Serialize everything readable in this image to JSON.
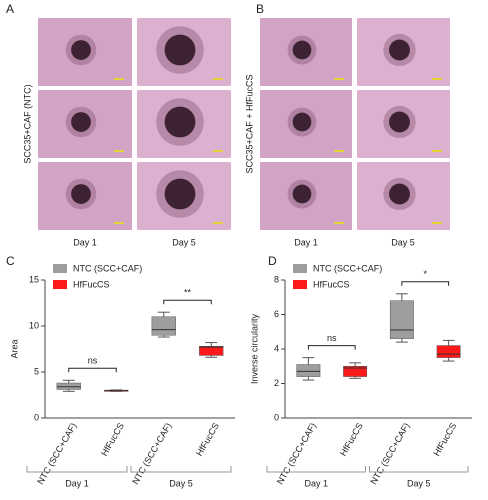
{
  "images": {
    "panel_a": {
      "label": "A",
      "row_label": "SCC35+CAF (NTC)",
      "columns": [
        "Day 1",
        "Day 5"
      ]
    },
    "panel_b": {
      "label": "B",
      "row_label": "SCC35+CAF + HfFucCS",
      "columns": [
        "Day 1",
        "Day 5"
      ]
    }
  },
  "chart_data": [
    {
      "type": "box",
      "panel": "C",
      "ylabel": "Area",
      "categories": [
        "NTC (SCC+CAF)",
        "HfFucCS",
        "NTC (SCC+CAF)",
        "HfFucCS"
      ],
      "groups": [
        "Day 1",
        "Day 5"
      ],
      "annotations": [
        "ns",
        "**"
      ],
      "series": [
        {
          "name": "NTC (SCC+CAF)",
          "color": "#9e9e9e",
          "boxes": [
            {
              "min": 2.9,
              "q1": 3.1,
              "median": 3.4,
              "q3": 3.8,
              "max": 4.1
            },
            null,
            {
              "min": 8.8,
              "q1": 9.0,
              "median": 9.6,
              "q3": 11.0,
              "max": 11.5
            },
            null
          ]
        },
        {
          "name": "HfFucCS",
          "color": "#ff1a1a",
          "boxes": [
            null,
            {
              "min": 2.9,
              "q1": 2.95,
              "median": 3.0,
              "q3": 3.0,
              "max": 3.05
            },
            null,
            {
              "min": 6.6,
              "q1": 6.8,
              "median": 7.7,
              "q3": 7.8,
              "max": 8.2
            }
          ]
        }
      ],
      "ylim": [
        0,
        15
      ],
      "yticks": [
        0,
        5,
        10,
        15
      ]
    },
    {
      "type": "box",
      "panel": "D",
      "ylabel": "Inverse circularity",
      "categories": [
        "NTC (SCC+CAF)",
        "HfFucCS",
        "NTC (SCC+CAF)",
        "HfFucCS"
      ],
      "groups": [
        "Day 1",
        "Day 5"
      ],
      "annotations": [
        "ns",
        "*"
      ],
      "series": [
        {
          "name": "NTC (SCC+CAF)",
          "color": "#9e9e9e",
          "boxes": [
            {
              "min": 2.2,
              "q1": 2.4,
              "median": 2.7,
              "q3": 3.1,
              "max": 3.5
            },
            null,
            {
              "min": 4.4,
              "q1": 4.6,
              "median": 5.1,
              "q3": 6.8,
              "max": 7.2
            },
            null
          ]
        },
        {
          "name": "HfFucCS",
          "color": "#ff1a1a",
          "boxes": [
            null,
            {
              "min": 2.3,
              "q1": 2.4,
              "median": 2.9,
              "q3": 3.0,
              "max": 3.2
            },
            null,
            {
              "min": 3.3,
              "q1": 3.5,
              "median": 3.7,
              "q3": 4.2,
              "max": 4.5
            }
          ]
        }
      ],
      "ylim": [
        0,
        8
      ],
      "yticks": [
        0,
        2,
        4,
        6,
        8
      ]
    }
  ]
}
